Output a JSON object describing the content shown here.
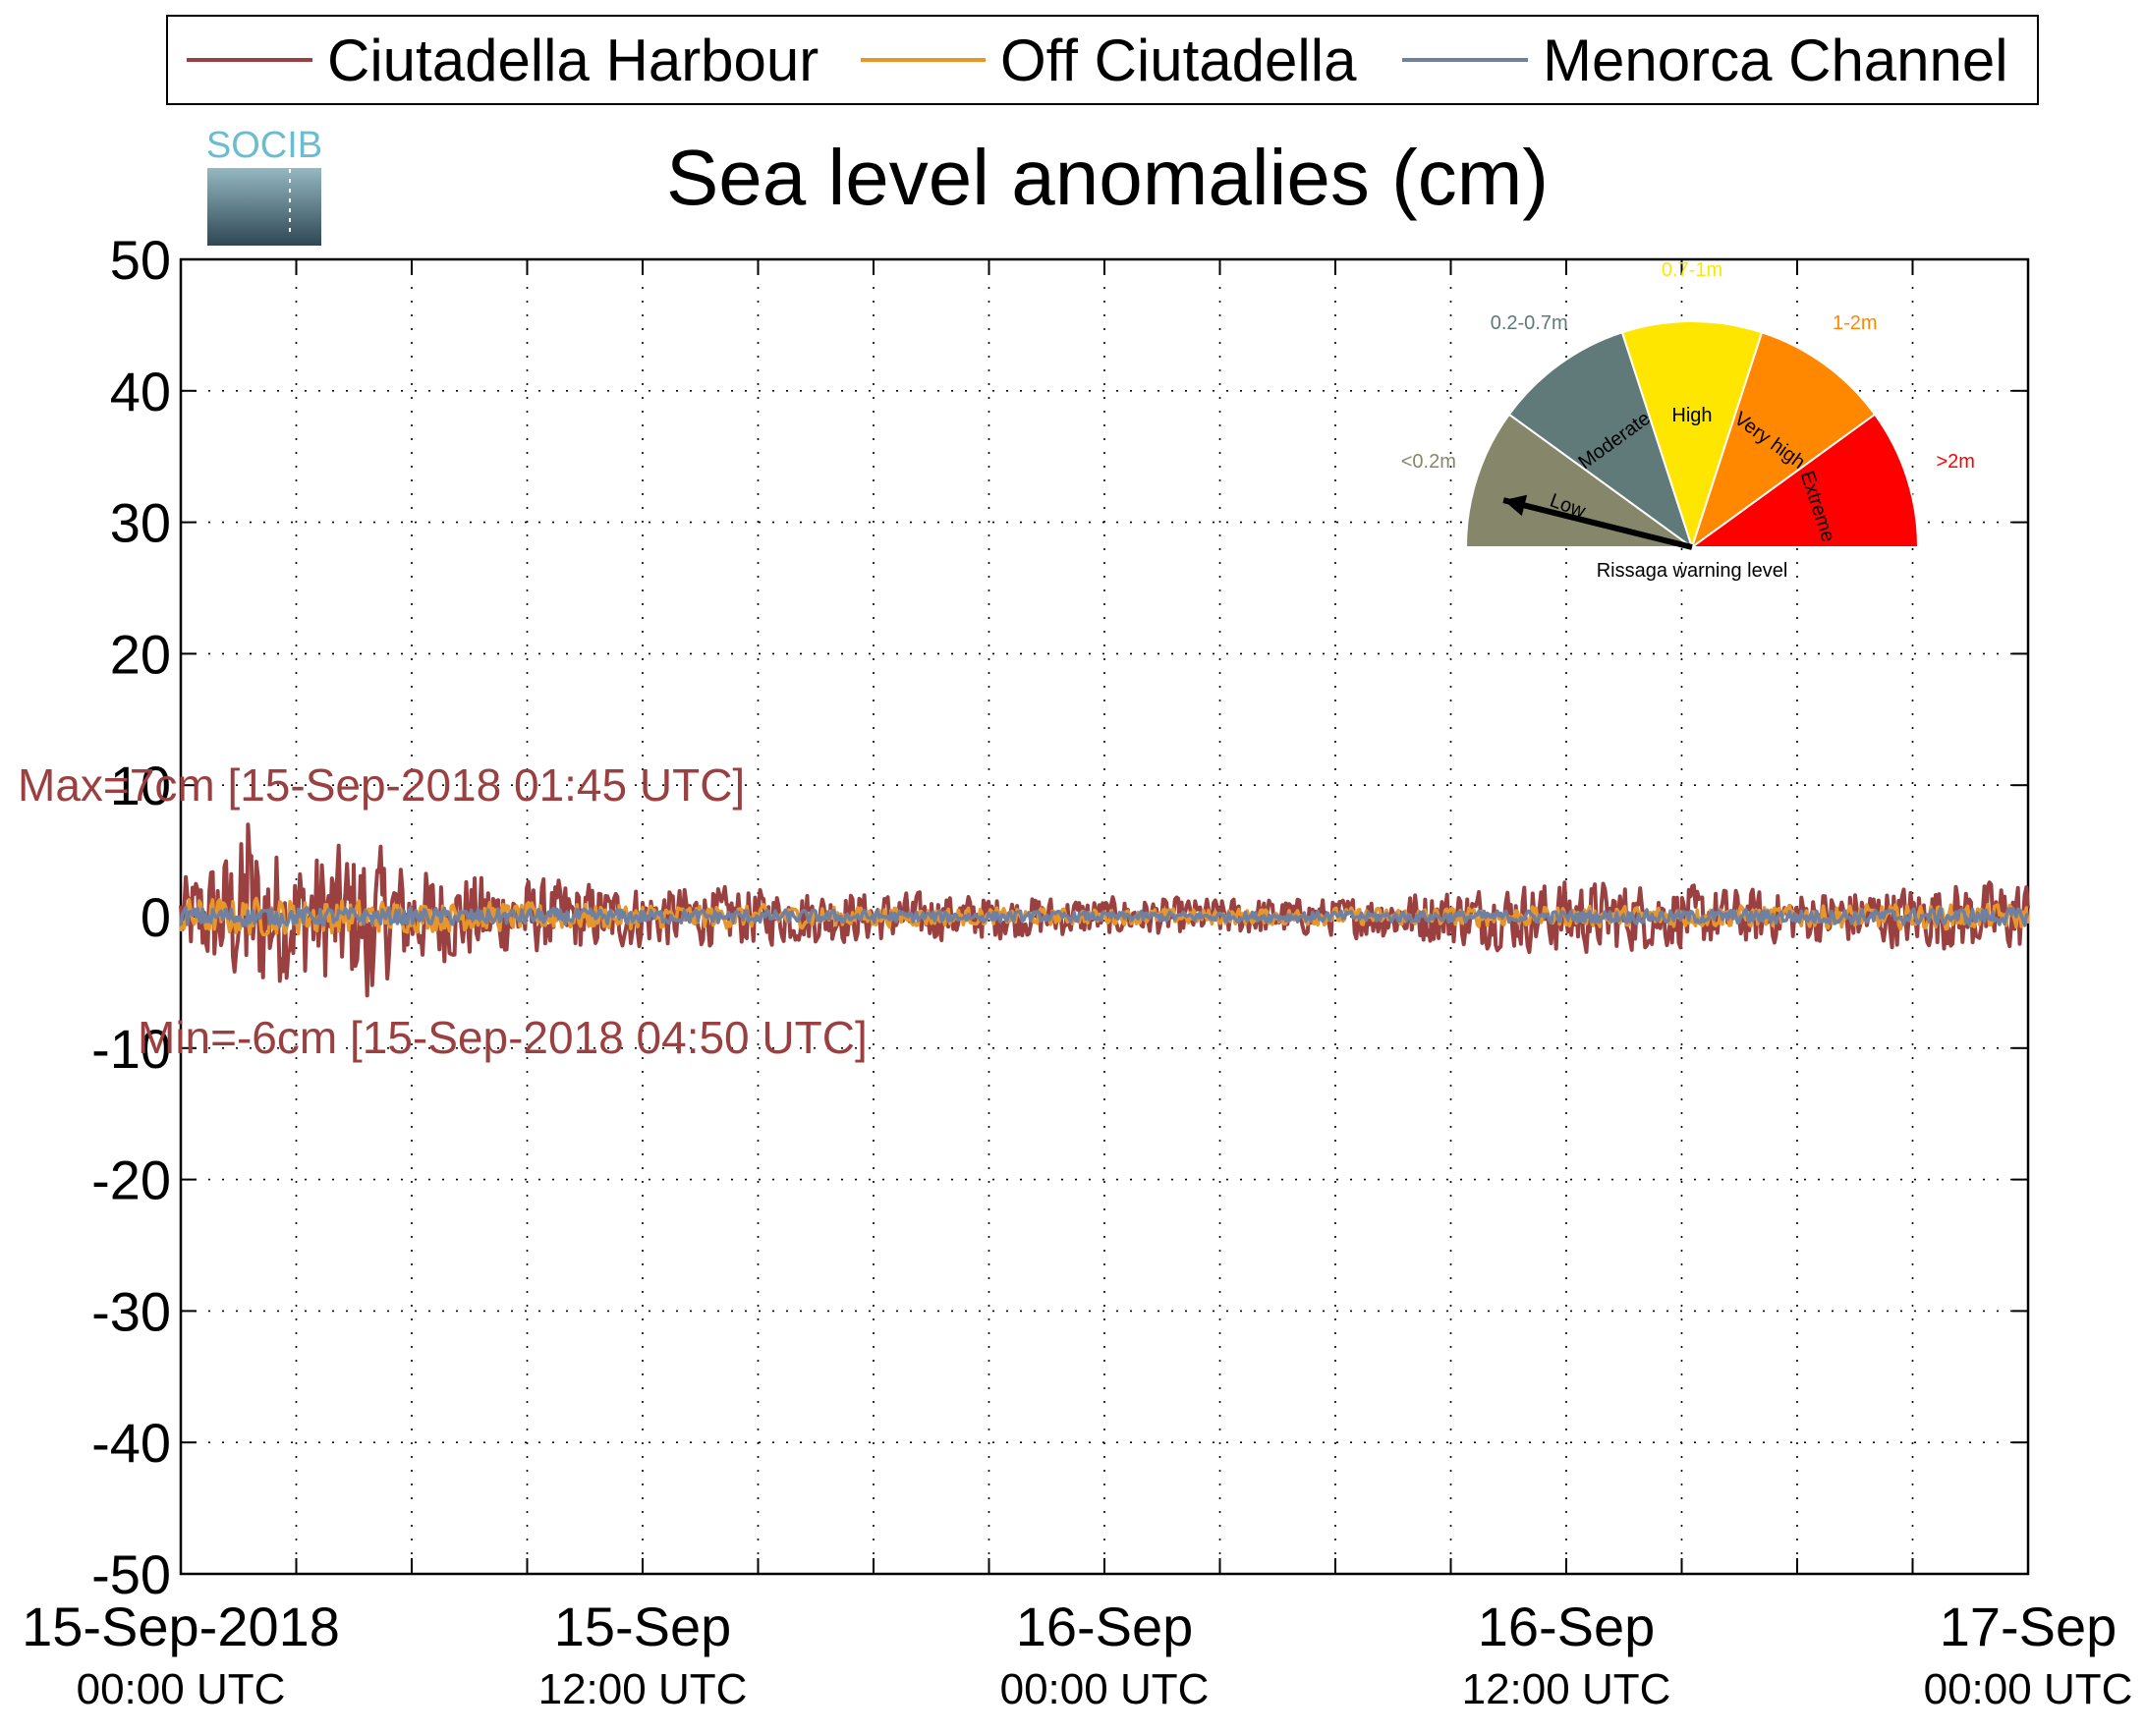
{
  "chart_data": {
    "type": "line",
    "title": "Sea level anomalies (cm)",
    "logo_text": "SOCIB",
    "ylim": [
      -50,
      50
    ],
    "yticks": [
      -50,
      -40,
      -30,
      -20,
      -10,
      0,
      10,
      20,
      30,
      40,
      50
    ],
    "xlim": [
      "15-Sep-2018 00:00 UTC",
      "17-Sep-2018 00:00 UTC"
    ],
    "xticks": [
      {
        "line1": "15-Sep-2018",
        "line2": "00:00 UTC"
      },
      {
        "line1": "15-Sep",
        "line2": "12:00 UTC"
      },
      {
        "line1": "16-Sep",
        "line2": "00:00 UTC"
      },
      {
        "line1": "16-Sep",
        "line2": "12:00 UTC"
      },
      {
        "line1": "17-Sep",
        "line2": "00:00 UTC"
      }
    ],
    "grid": true,
    "legend_position": "top",
    "series": [
      {
        "name": "Ciutadella Harbour",
        "color": "#9b4040",
        "x": [
          "15-Sep-2018 00:00",
          "15-Sep-2018 01:00",
          "15-Sep-2018 01:45",
          "15-Sep-2018 03:00",
          "15-Sep-2018 04:50",
          "15-Sep-2018 06:00",
          "15-Sep-2018 09:00",
          "15-Sep-2018 12:00",
          "15-Sep-2018 18:00",
          "16-Sep-2018 00:00",
          "16-Sep-2018 06:00",
          "16-Sep-2018 12:00",
          "16-Sep-2018 18:00",
          "17-Sep-2018 00:00"
        ],
        "envelope": [
          3,
          5,
          7,
          5,
          6,
          4,
          3,
          2.5,
          2,
          1.5,
          1.5,
          3,
          2,
          3
        ]
      },
      {
        "name": "Off Ciutadella",
        "color": "#e8962a",
        "x": [
          "15-Sep-2018 00:00",
          "15-Sep-2018 03:00",
          "15-Sep-2018 06:00",
          "15-Sep-2018 12:00",
          "16-Sep-2018 00:00",
          "16-Sep-2018 12:00",
          "17-Sep-2018 00:00"
        ],
        "envelope": [
          1.5,
          1.5,
          1.2,
          1,
          0.6,
          0.8,
          1
        ]
      },
      {
        "name": "Menorca Channel",
        "color": "#7080a0",
        "x": [
          "15-Sep-2018 00:00",
          "15-Sep-2018 12:00",
          "16-Sep-2018 00:00",
          "16-Sep-2018 12:00",
          "17-Sep-2018 00:00"
        ],
        "envelope": [
          0.8,
          0.6,
          0.4,
          0.5,
          0.7
        ]
      }
    ],
    "annotations": {
      "max": {
        "text": "Max=7cm [15-Sep-2018 01:45 UTC]",
        "value": 7,
        "color": "#9b4040"
      },
      "min": {
        "text": "Min=-6cm [15-Sep-2018 04:50 UTC]",
        "value": -6,
        "color": "#9b4040"
      }
    },
    "gauge": {
      "caption": "Rissaga warning level",
      "pointer_level": "Low",
      "levels": [
        {
          "name": "Low",
          "range": "<0.2m",
          "color": "#86876a"
        },
        {
          "name": "Moderate",
          "range": "0.2-0.7m",
          "color": "#5f7a78"
        },
        {
          "name": "High",
          "range": "0.7-1m",
          "color": "#ffe600"
        },
        {
          "name": "Very high",
          "range": "1-2m",
          "color": "#ff8800"
        },
        {
          "name": "Extreme",
          "range": ">2m",
          "color": "#ff0000"
        }
      ]
    }
  }
}
